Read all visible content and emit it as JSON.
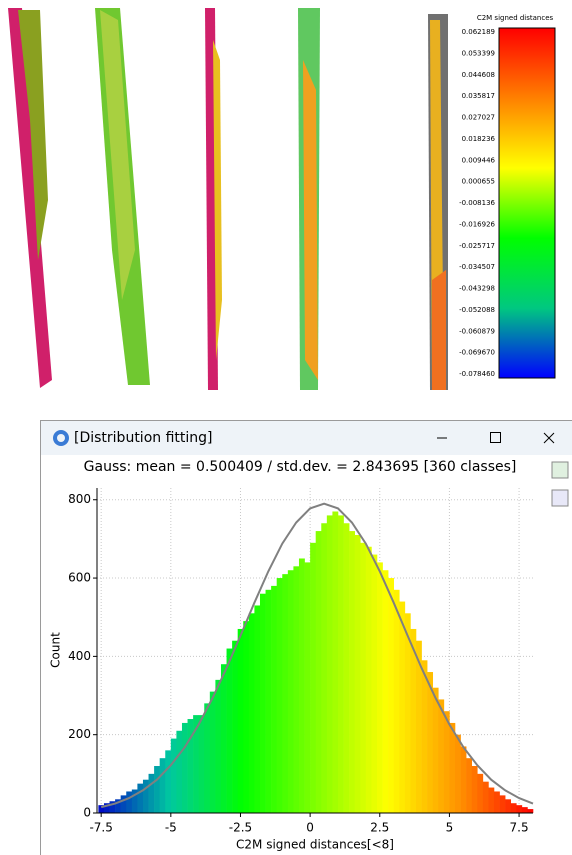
{
  "scale_bar": {
    "title": "C2M signed distances",
    "labels": [
      "0.062189",
      "0.053399",
      "0.044608",
      "0.035817",
      "0.027027",
      "0.018236",
      "0.009446",
      "0.000655",
      "-0.008136",
      "-0.016926",
      "-0.025717",
      "-0.034507",
      "-0.043298",
      "-0.052088",
      "-0.060879",
      "-0.069670",
      "-0.078460"
    ],
    "colors": [
      "#ff0000",
      "#ff8000",
      "#ffff00",
      "#00ff00",
      "#00c880",
      "#0000ff"
    ]
  },
  "window": {
    "title": "[Distribution fitting]"
  },
  "chart_data": {
    "type": "histogram",
    "title": "Gauss: mean = 0.500409 / std.dev. = 2.843695 [360 classes]",
    "x_label": "C2M signed distances[<8]",
    "y_label": "Count",
    "bins": [
      -7.6,
      -7.4,
      -7.2,
      -7,
      -6.8,
      -6.6,
      -6.4,
      -6.2,
      -6,
      -5.8,
      -5.6,
      -5.4,
      -5.2,
      -5,
      -4.8,
      -4.6,
      -4.4,
      -4.2,
      -4,
      -3.8,
      -3.6,
      -3.4,
      -3.2,
      -3,
      -2.8,
      -2.6,
      -2.4,
      -2.2,
      -2,
      -1.8,
      -1.6,
      -1.4,
      -1.2,
      -1,
      -0.8,
      -0.6,
      -0.4,
      -0.2,
      0,
      0.2,
      0.4,
      0.6,
      0.8,
      1,
      1.2,
      1.4,
      1.6,
      1.8,
      2,
      2.2,
      2.4,
      2.6,
      2.8,
      3,
      3.2,
      3.4,
      3.6,
      3.8,
      4,
      4.2,
      4.4,
      4.6,
      4.8,
      5,
      5.2,
      5.4,
      5.6,
      5.8,
      6,
      6.2,
      6.4,
      6.6,
      6.8,
      7,
      7.2,
      7.4,
      7.6,
      7.8,
      8
    ],
    "values": [
      20,
      25,
      30,
      35,
      45,
      55,
      60,
      75,
      85,
      100,
      120,
      140,
      160,
      190,
      210,
      230,
      240,
      250,
      250,
      280,
      310,
      340,
      380,
      420,
      440,
      470,
      490,
      510,
      530,
      560,
      570,
      580,
      600,
      610,
      620,
      630,
      650,
      640,
      690,
      720,
      740,
      760,
      770,
      760,
      740,
      720,
      710,
      690,
      680,
      660,
      640,
      620,
      600,
      570,
      540,
      510,
      470,
      440,
      390,
      360,
      320,
      290,
      260,
      230,
      200,
      170,
      140,
      120,
      100,
      80,
      65,
      55,
      45,
      35,
      25,
      20,
      15,
      10
    ],
    "colorscale": [
      "#0000c8",
      "#00c8a0",
      "#00ff00",
      "#80ff00",
      "#ffff00",
      "#ff9000",
      "#ff0000"
    ],
    "fit": {
      "color": "#808080",
      "x": [
        -7.5,
        -7,
        -6.5,
        -6,
        -5.5,
        -5,
        -4.5,
        -4,
        -3.5,
        -3,
        -2.5,
        -2,
        -1.5,
        -1,
        -0.5,
        0,
        0.5,
        1,
        1.5,
        2,
        2.5,
        3,
        3.5,
        4,
        4.5,
        5,
        5.5,
        6,
        6.5,
        7,
        7.5,
        8
      ],
      "values": [
        15,
        24,
        38,
        58,
        85,
        122,
        168,
        226,
        294,
        370,
        453,
        537,
        617,
        688,
        742,
        778,
        790,
        778,
        742,
        688,
        617,
        537,
        453,
        370,
        294,
        226,
        168,
        122,
        85,
        58,
        38,
        24
      ]
    },
    "xlim": [
      -7.65,
      8.0
    ],
    "ylim": [
      0,
      830
    ],
    "xticks": [
      -7.5,
      -5,
      -2.5,
      0,
      2.5,
      5,
      7.5
    ],
    "yticks": [
      0,
      200,
      400,
      600,
      800
    ],
    "grid": true
  }
}
